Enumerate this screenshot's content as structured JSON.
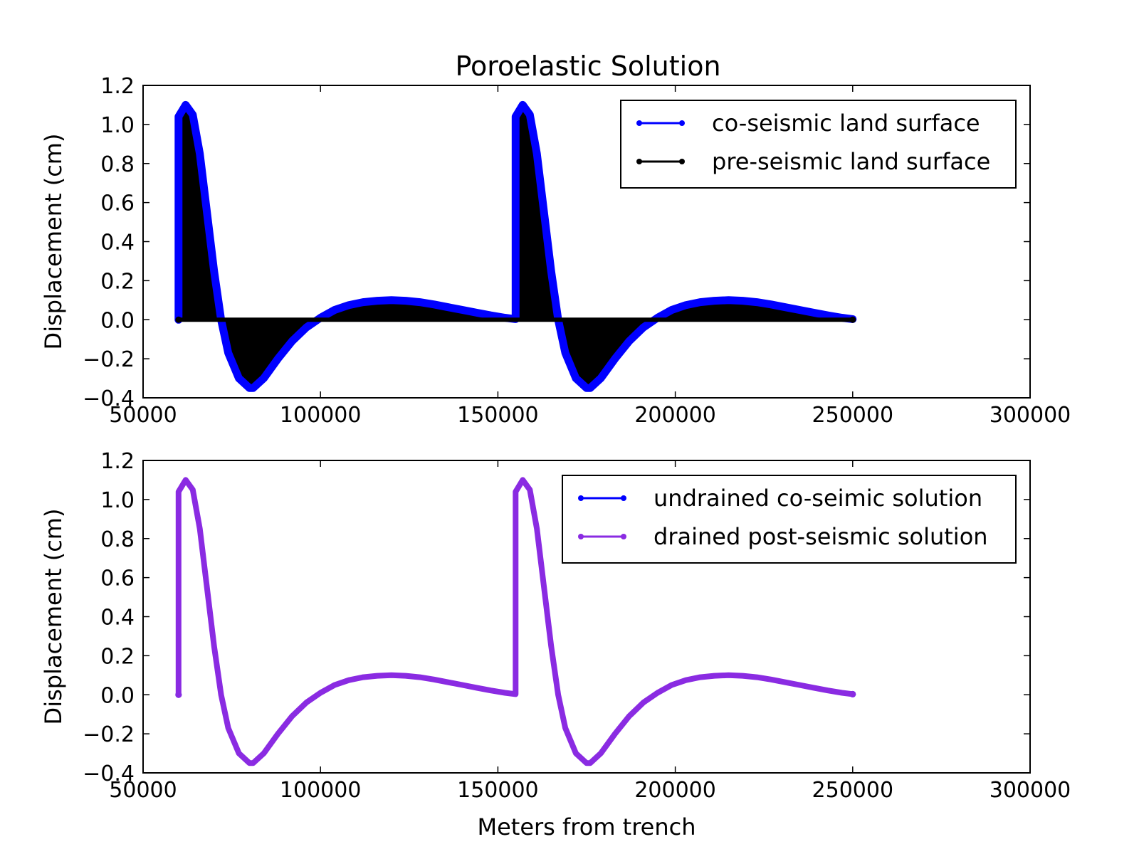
{
  "figure": {
    "title": "Poroelastic Solution"
  },
  "chart_data": [
    {
      "type": "line",
      "title": "Poroelastic Solution",
      "xlabel": "",
      "ylabel": "Displacement (cm)",
      "xlim": [
        50000,
        300000
      ],
      "ylim": [
        -0.4,
        1.2
      ],
      "xticks": [
        50000,
        100000,
        150000,
        200000,
        250000,
        300000
      ],
      "yticks": [
        -0.4,
        -0.2,
        0.0,
        0.2,
        0.4,
        0.6,
        0.8,
        1.0,
        1.2
      ],
      "xtick_labels": [
        "50000",
        "100000",
        "150000",
        "200000",
        "250000",
        "300000"
      ],
      "ytick_labels": [
        "−0.4",
        "−0.2",
        "0.0",
        "0.2",
        "0.4",
        "0.6",
        "0.8",
        "1.0",
        "1.2"
      ],
      "grid": false,
      "legend_position": "upper right",
      "fill_between_series": true,
      "x": [
        60000,
        60001,
        62000,
        64000,
        66000,
        68000,
        70000,
        72000,
        74000,
        77000,
        80000,
        81000,
        84000,
        88000,
        92000,
        96000,
        100000,
        104000,
        108000,
        112000,
        116000,
        120000,
        124000,
        128000,
        132000,
        136000,
        140000,
        144000,
        148000,
        152000,
        155000,
        155001,
        157000,
        159000,
        161000,
        163000,
        165000,
        167000,
        169000,
        172000,
        175000,
        176000,
        179000,
        183000,
        187000,
        191000,
        195000,
        199000,
        203000,
        207000,
        211000,
        215000,
        219000,
        223000,
        227000,
        231000,
        235000,
        239000,
        243000,
        247000,
        250000
      ],
      "series": [
        {
          "name": "co-seismic land surface",
          "color": "#0000ff",
          "values": [
            0.0,
            1.04,
            1.1,
            1.05,
            0.85,
            0.55,
            0.25,
            0.0,
            -0.17,
            -0.3,
            -0.35,
            -0.35,
            -0.3,
            -0.2,
            -0.11,
            -0.04,
            0.01,
            0.05,
            0.075,
            0.09,
            0.097,
            0.1,
            0.097,
            0.09,
            0.078,
            0.064,
            0.05,
            0.036,
            0.022,
            0.01,
            0.003,
            1.04,
            1.1,
            1.05,
            0.85,
            0.55,
            0.25,
            0.0,
            -0.17,
            -0.3,
            -0.35,
            -0.35,
            -0.3,
            -0.2,
            -0.11,
            -0.04,
            0.01,
            0.05,
            0.075,
            0.09,
            0.097,
            0.1,
            0.097,
            0.09,
            0.078,
            0.064,
            0.05,
            0.036,
            0.022,
            0.01,
            0.003
          ]
        },
        {
          "name": "pre-seismic land surface",
          "color": "#000000",
          "values": [
            0.0,
            0.0,
            0.0,
            0.0,
            0.0,
            0.0,
            0.0,
            0.0,
            0.0,
            0.0,
            0.0,
            0.0,
            0.0,
            0.0,
            0.0,
            0.0,
            0.0,
            0.0,
            0.0,
            0.0,
            0.0,
            0.0,
            0.0,
            0.0,
            0.0,
            0.0,
            0.0,
            0.0,
            0.0,
            0.0,
            0.0,
            0.0,
            0.0,
            0.0,
            0.0,
            0.0,
            0.0,
            0.0,
            0.0,
            0.0,
            0.0,
            0.0,
            0.0,
            0.0,
            0.0,
            0.0,
            0.0,
            0.0,
            0.0,
            0.0,
            0.0,
            0.0,
            0.0,
            0.0,
            0.0,
            0.0,
            0.0,
            0.0,
            0.0,
            0.0,
            0.0
          ]
        }
      ]
    },
    {
      "type": "line",
      "title": "",
      "xlabel": "Meters from trench",
      "ylabel": "Displacement (cm)",
      "xlim": [
        50000,
        300000
      ],
      "ylim": [
        -0.4,
        1.2
      ],
      "xticks": [
        50000,
        100000,
        150000,
        200000,
        250000,
        300000
      ],
      "yticks": [
        -0.4,
        -0.2,
        0.0,
        0.2,
        0.4,
        0.6,
        0.8,
        1.0,
        1.2
      ],
      "xtick_labels": [
        "50000",
        "100000",
        "150000",
        "200000",
        "250000",
        "300000"
      ],
      "ytick_labels": [
        "−0.4",
        "−0.2",
        "0.0",
        "0.2",
        "0.4",
        "0.6",
        "0.8",
        "1.0",
        "1.2"
      ],
      "grid": false,
      "legend_position": "upper right",
      "fill_between_series": false,
      "x": [
        60000,
        60001,
        62000,
        64000,
        66000,
        68000,
        70000,
        72000,
        74000,
        77000,
        80000,
        81000,
        84000,
        88000,
        92000,
        96000,
        100000,
        104000,
        108000,
        112000,
        116000,
        120000,
        124000,
        128000,
        132000,
        136000,
        140000,
        144000,
        148000,
        152000,
        155000,
        155001,
        157000,
        159000,
        161000,
        163000,
        165000,
        167000,
        169000,
        172000,
        175000,
        176000,
        179000,
        183000,
        187000,
        191000,
        195000,
        199000,
        203000,
        207000,
        211000,
        215000,
        219000,
        223000,
        227000,
        231000,
        235000,
        239000,
        243000,
        247000,
        250000
      ],
      "series": [
        {
          "name": "undrained co-seimic solution",
          "color": "#0000ff",
          "values": [
            0.0,
            1.04,
            1.1,
            1.05,
            0.85,
            0.55,
            0.25,
            0.0,
            -0.17,
            -0.3,
            -0.35,
            -0.35,
            -0.3,
            -0.2,
            -0.11,
            -0.04,
            0.01,
            0.05,
            0.075,
            0.09,
            0.097,
            0.1,
            0.097,
            0.09,
            0.078,
            0.064,
            0.05,
            0.036,
            0.022,
            0.01,
            0.003,
            1.04,
            1.1,
            1.05,
            0.85,
            0.55,
            0.25,
            0.0,
            -0.17,
            -0.3,
            -0.35,
            -0.35,
            -0.3,
            -0.2,
            -0.11,
            -0.04,
            0.01,
            0.05,
            0.075,
            0.09,
            0.097,
            0.1,
            0.097,
            0.09,
            0.078,
            0.064,
            0.05,
            0.036,
            0.022,
            0.01,
            0.003
          ]
        },
        {
          "name": "drained post-seismic solution",
          "color": "#8a2be2",
          "values": [
            0.0,
            1.04,
            1.1,
            1.05,
            0.85,
            0.55,
            0.25,
            0.0,
            -0.17,
            -0.3,
            -0.35,
            -0.35,
            -0.3,
            -0.2,
            -0.11,
            -0.04,
            0.01,
            0.05,
            0.075,
            0.09,
            0.097,
            0.1,
            0.097,
            0.09,
            0.078,
            0.064,
            0.05,
            0.036,
            0.022,
            0.01,
            0.003,
            1.04,
            1.1,
            1.05,
            0.85,
            0.55,
            0.25,
            0.0,
            -0.17,
            -0.3,
            -0.35,
            -0.35,
            -0.3,
            -0.2,
            -0.11,
            -0.04,
            0.01,
            0.05,
            0.075,
            0.09,
            0.097,
            0.1,
            0.097,
            0.09,
            0.078,
            0.064,
            0.05,
            0.036,
            0.022,
            0.01,
            0.003
          ]
        }
      ]
    }
  ]
}
